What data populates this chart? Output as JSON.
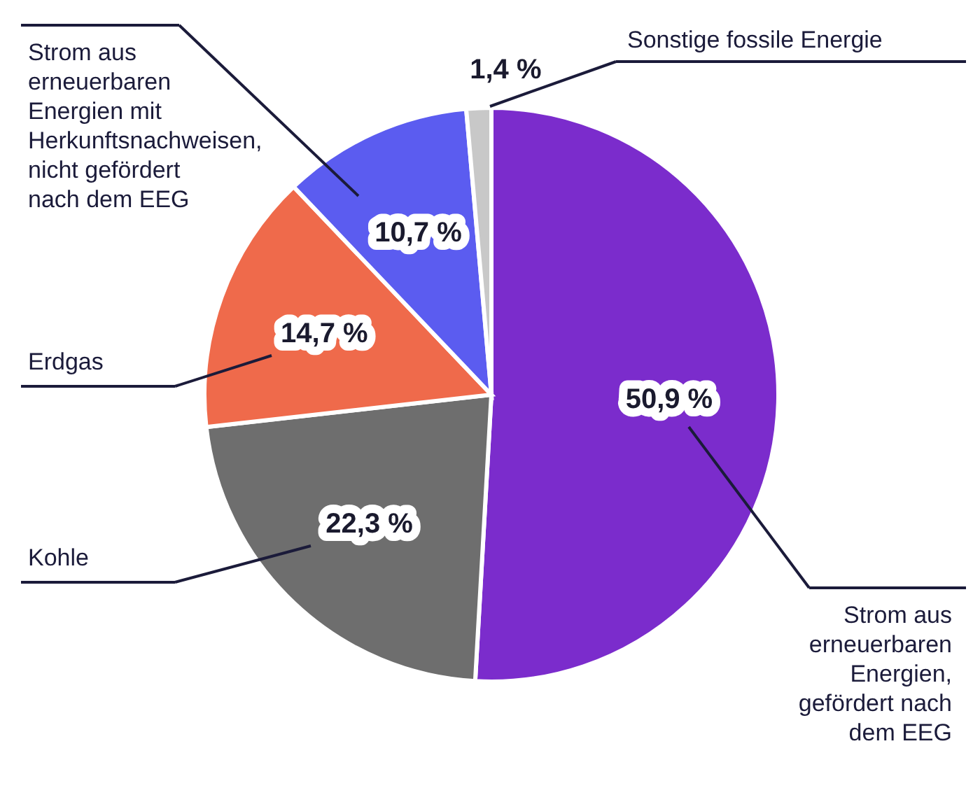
{
  "chart_data": {
    "type": "pie",
    "categories": [
      "Strom aus erneuerbaren Energien, gefördert nach dem EEG",
      "Kohle",
      "Erdgas",
      "Strom aus erneuerbaren Energien mit Herkunftsnachweisen, nicht gefördert nach dem EEG",
      "Sonstige fossile Energie"
    ],
    "values": [
      50.9,
      22.3,
      14.7,
      10.7,
      1.4
    ],
    "colors": [
      "#7b2ccc",
      "#6e6e6e",
      "#ef6a4b",
      "#5b5cf0",
      "#c8c8c8"
    ],
    "value_labels": [
      "50,9 %",
      "22,3 %",
      "14,7 %",
      "10,7 %",
      "1,4 %"
    ]
  }
}
